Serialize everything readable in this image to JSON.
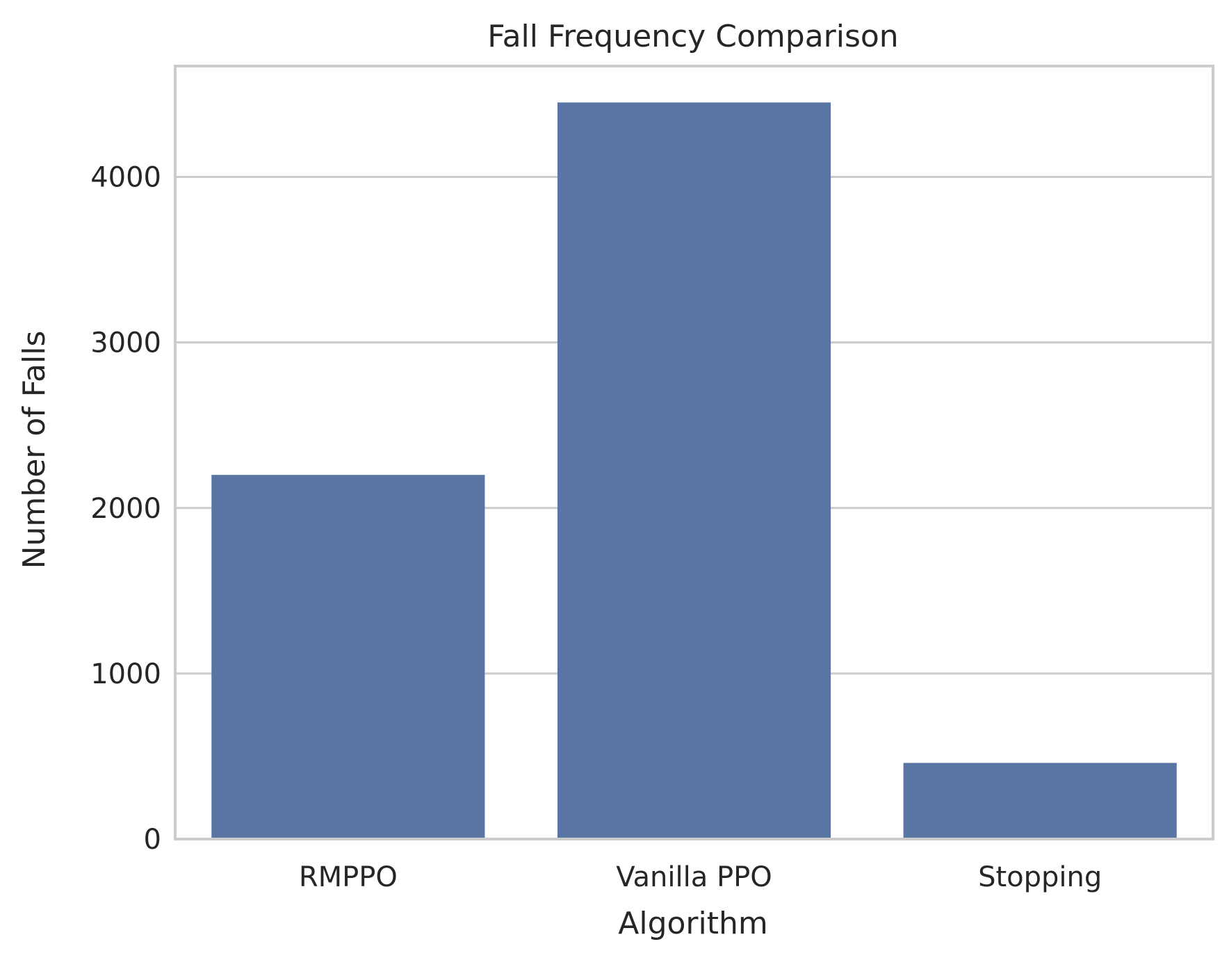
{
  "chart_data": {
    "type": "bar",
    "title": "Fall Frequency Comparison",
    "xlabel": "Algorithm",
    "ylabel": "Number of Falls",
    "categories": [
      "RMPPO",
      "Vanilla PPO",
      "Stopping"
    ],
    "values": [
      2200,
      4450,
      460
    ],
    "ylim": [
      0,
      4670
    ],
    "yticks": [
      0,
      1000,
      2000,
      3000,
      4000
    ],
    "grid": "horizontal",
    "colors": {
      "bar": "#5975a4",
      "grid": "#cccccc",
      "frame": "#cccccc",
      "text": "#262626"
    }
  }
}
